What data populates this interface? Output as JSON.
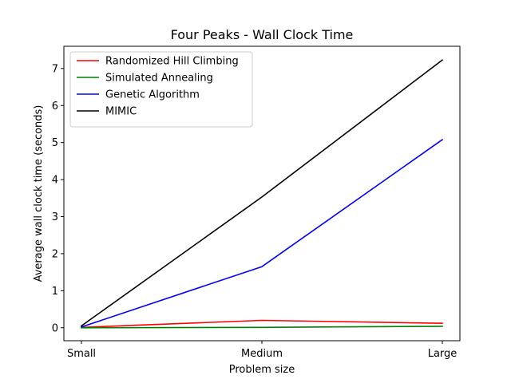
{
  "chart_data": {
    "type": "line",
    "title": "Four Peaks - Wall Clock Time",
    "xlabel": "Problem size",
    "ylabel": "Average wall clock time (seconds)",
    "categories": [
      "Small",
      "Medium",
      "Large"
    ],
    "ylim": [
      -0.35,
      7.6
    ],
    "yticks": [
      0,
      1,
      2,
      3,
      4,
      5,
      6,
      7
    ],
    "grid": false,
    "legend_position": "top-left",
    "series": [
      {
        "name": "Randomized Hill Climbing",
        "color": "#ff0000",
        "values": [
          0.01,
          0.2,
          0.12
        ]
      },
      {
        "name": "Simulated Annealing",
        "color": "#008000",
        "values": [
          0.0,
          0.01,
          0.04
        ]
      },
      {
        "name": "Genetic Algorithm",
        "color": "#0000ff",
        "values": [
          0.02,
          1.65,
          5.08
        ]
      },
      {
        "name": "MIMIC",
        "color": "#000000",
        "values": [
          0.05,
          3.53,
          7.23
        ]
      }
    ]
  }
}
